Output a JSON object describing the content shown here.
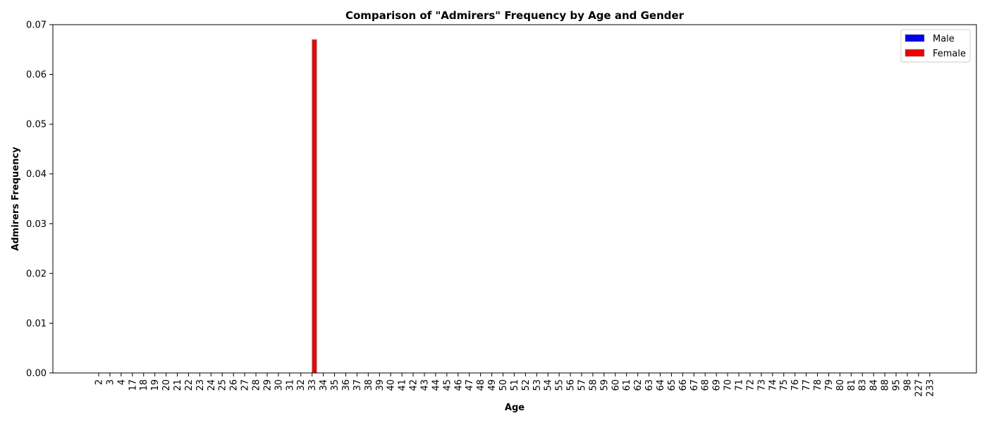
{
  "chart_data": {
    "type": "bar",
    "title": "Comparison of \"Admirers\" Frequency by Age and Gender",
    "xlabel": "Age",
    "ylabel": "Admirers Frequency",
    "ylim": [
      0,
      0.07
    ],
    "yticks": [
      "0.00",
      "0.01",
      "0.02",
      "0.03",
      "0.04",
      "0.05",
      "0.06",
      "0.07"
    ],
    "grid": false,
    "legend_position": "top-right",
    "categories": [
      "2",
      "3",
      "4",
      "17",
      "18",
      "19",
      "20",
      "21",
      "22",
      "23",
      "24",
      "25",
      "26",
      "27",
      "28",
      "29",
      "30",
      "31",
      "32",
      "33",
      "34",
      "35",
      "36",
      "37",
      "38",
      "39",
      "40",
      "41",
      "42",
      "43",
      "44",
      "45",
      "46",
      "47",
      "48",
      "49",
      "50",
      "51",
      "52",
      "53",
      "54",
      "55",
      "56",
      "57",
      "58",
      "59",
      "60",
      "61",
      "62",
      "63",
      "64",
      "65",
      "66",
      "67",
      "68",
      "69",
      "70",
      "71",
      "72",
      "73",
      "74",
      "75",
      "76",
      "77",
      "78",
      "79",
      "80",
      "81",
      "83",
      "84",
      "88",
      "95",
      "98",
      "227",
      "233"
    ],
    "series": [
      {
        "name": "Male",
        "color": "#0000ee",
        "values": {}
      },
      {
        "name": "Female",
        "color": "#ee0000",
        "values": {
          "33": 0.067
        }
      }
    ]
  }
}
